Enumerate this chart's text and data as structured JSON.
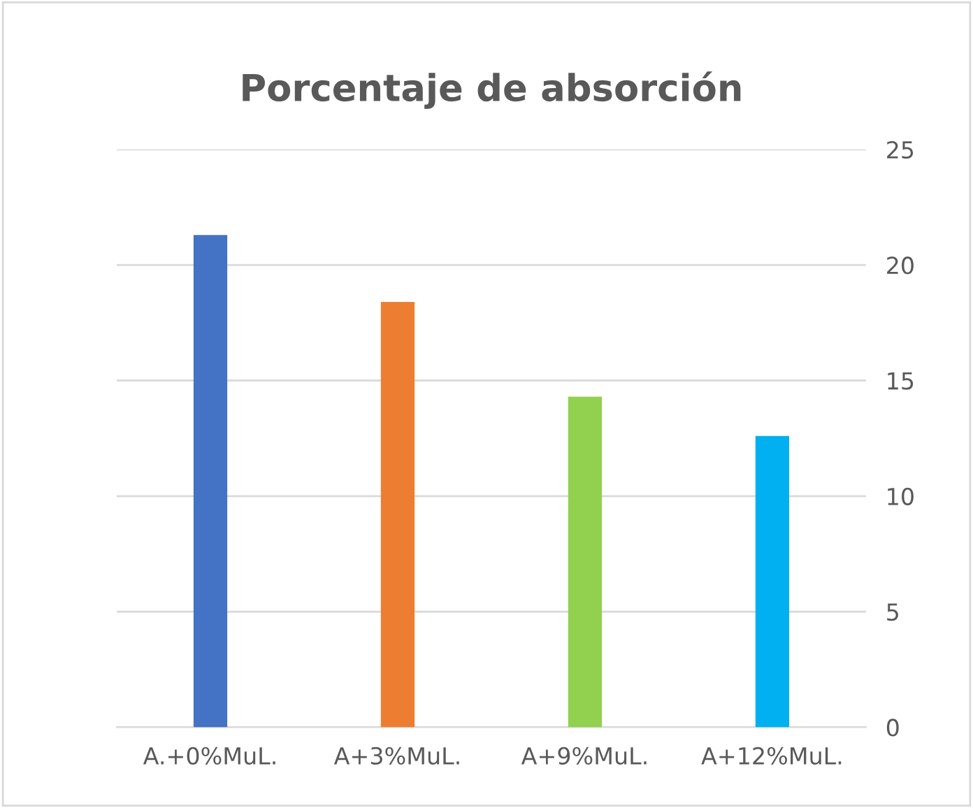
{
  "chart_data": {
    "type": "bar",
    "title": "Porcentaje de absorción",
    "categories": [
      "A.+0%MuL.",
      "A+3%MuL.",
      "A+9%MuL.",
      "A+12%MuL."
    ],
    "values": [
      21.3,
      18.4,
      14.3,
      12.6
    ],
    "colors": [
      "#4472c4",
      "#ed7d31",
      "#92d050",
      "#00b0f0"
    ],
    "ylim": [
      0,
      25
    ],
    "yticks": [
      0,
      5,
      10,
      15,
      20,
      25
    ],
    "grid": "y",
    "legend": false
  }
}
